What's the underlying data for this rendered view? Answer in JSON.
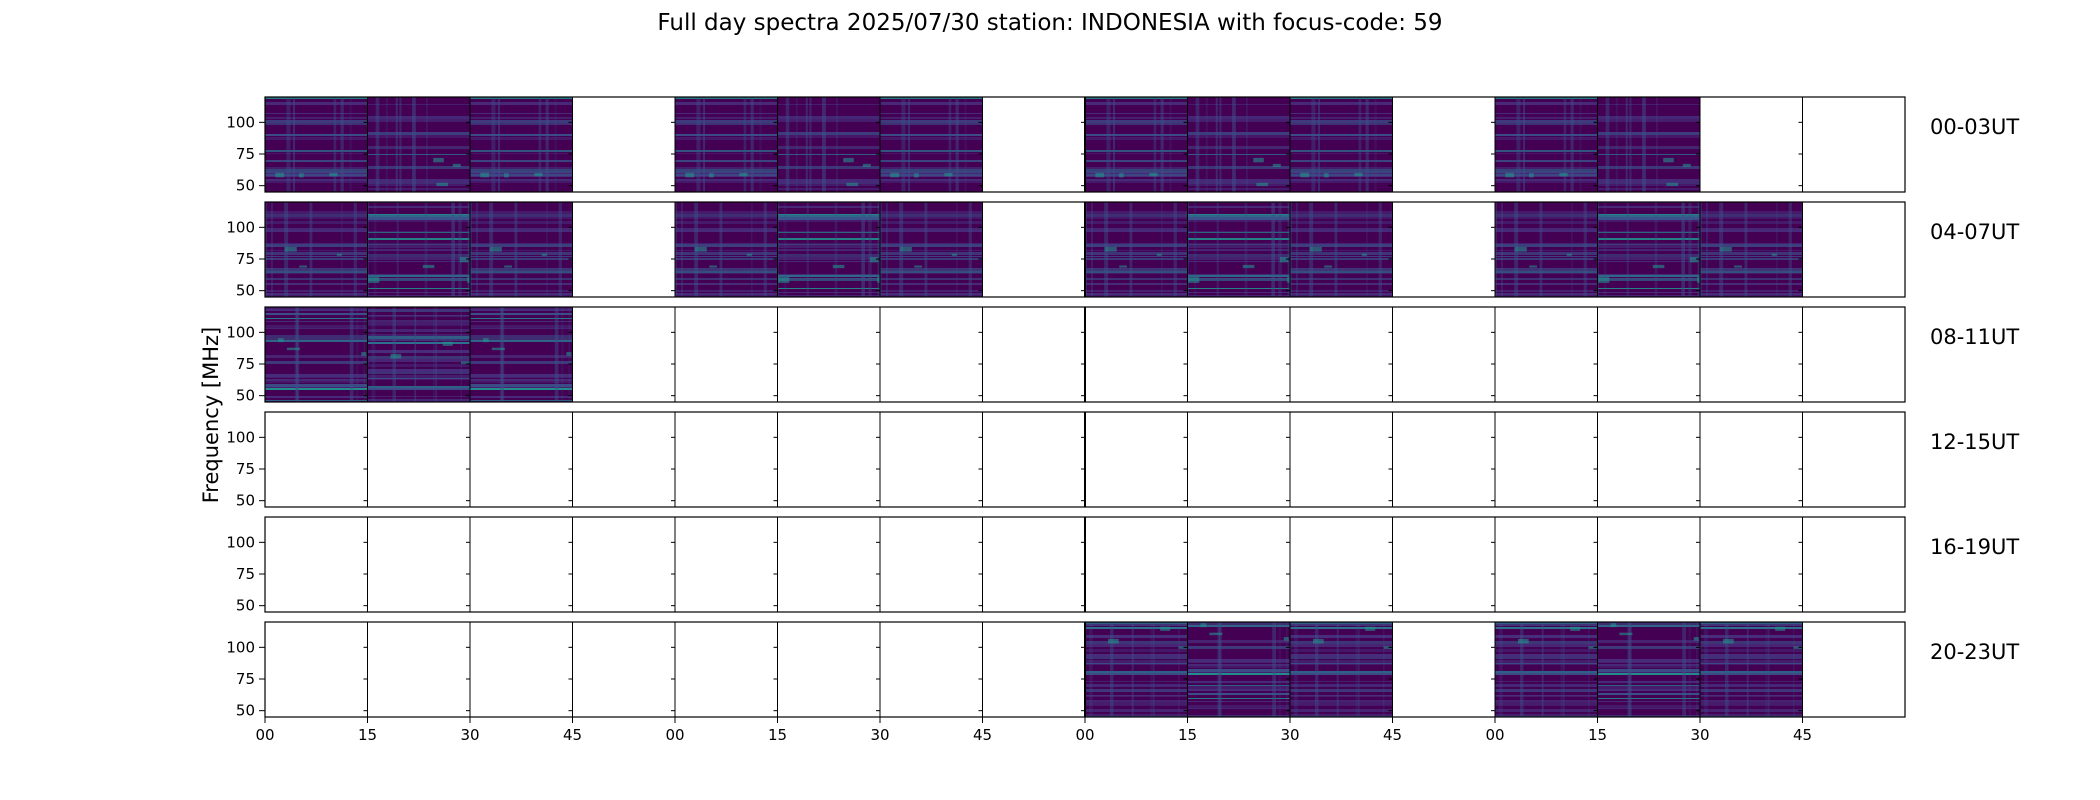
{
  "chart_data": {
    "type": "heatmap",
    "title": "Full day spectra 2025/07/30 station: INDONESIA with focus-code: 59",
    "ylabel": "Frequency [MHz]",
    "xlabel": "",
    "ylim": [
      45,
      120
    ],
    "yticks": [
      50,
      75,
      100
    ],
    "xtick_labels": [
      "00",
      "15",
      "30",
      "45",
      "00",
      "15",
      "30",
      "45",
      "00",
      "15",
      "30",
      "45",
      "00",
      "15",
      "30",
      "45"
    ],
    "colormap": [
      "#440154",
      "#472d7b",
      "#3b528b",
      "#2c728e",
      "#21918c",
      "#28ae80"
    ],
    "rows": [
      {
        "label": "00-03UT",
        "filled": [
          1,
          1,
          1,
          0,
          1,
          1,
          1,
          0,
          1,
          1,
          1,
          0,
          1,
          1,
          0,
          0
        ]
      },
      {
        "label": "04-07UT",
        "filled": [
          1,
          1,
          1,
          0,
          1,
          1,
          1,
          0,
          1,
          1,
          1,
          0,
          1,
          1,
          1,
          0
        ]
      },
      {
        "label": "08-11UT",
        "filled": [
          1,
          1,
          1,
          0,
          0,
          0,
          0,
          0,
          0,
          0,
          0,
          0,
          0,
          0,
          0,
          0
        ]
      },
      {
        "label": "12-15UT",
        "filled": [
          0,
          0,
          0,
          0,
          0,
          0,
          0,
          0,
          0,
          0,
          0,
          0,
          0,
          0,
          0,
          0
        ]
      },
      {
        "label": "16-19UT",
        "filled": [
          0,
          0,
          0,
          0,
          0,
          0,
          0,
          0,
          0,
          0,
          0,
          0,
          0,
          0,
          0,
          0
        ]
      },
      {
        "label": "20-23UT",
        "filled": [
          0,
          0,
          0,
          0,
          0,
          0,
          0,
          0,
          1,
          1,
          1,
          0,
          1,
          1,
          1,
          0
        ]
      }
    ]
  }
}
